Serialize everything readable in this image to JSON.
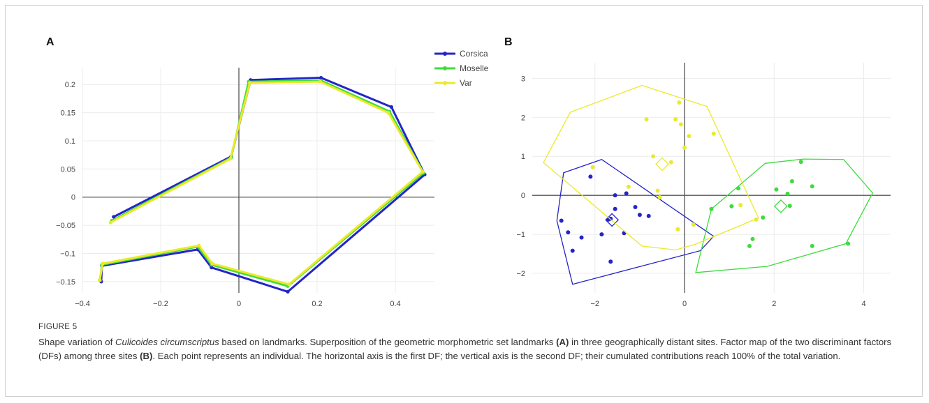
{
  "panels": {
    "a": "A",
    "b": "B"
  },
  "caption": {
    "label": "FIGURE 5",
    "text_before": "Shape variation of ",
    "species": "Culicoides circumscriptus",
    "text_1": " based on landmarks. Superposition of the geometric morphometric set landmarks ",
    "ref_a": "(A)",
    "text_2": " in three geographically distant sites. Factor map of the two discriminant factors (DFs) among three sites ",
    "ref_b": "(B)",
    "text_3": ". Each point represents an individual. The horizontal axis is the first DF; the vertical axis is the second DF; their cumulated contributions reach 100% of the total variation."
  },
  "colors": {
    "Corsica": "#2424c8",
    "Moselle": "#3ddc3d",
    "Var": "#eaea2a"
  },
  "chart_data": [
    {
      "type": "line",
      "panel": "A",
      "xlim": [
        -0.4,
        0.5
      ],
      "ylim": [
        -0.17,
        0.23
      ],
      "xticks": [
        -0.4,
        -0.2,
        0,
        0.2,
        0.4
      ],
      "xtick_labels": [
        "−0.4",
        "−0.2",
        "0",
        "0.2",
        "0.4"
      ],
      "yticks": [
        -0.15,
        -0.1,
        -0.05,
        0,
        0.05,
        0.1,
        0.15,
        0.2
      ],
      "ytick_labels": [
        "−0.15",
        "−0.1",
        "−0.05",
        "0",
        "0.05",
        "0.1",
        "0.15",
        "0.2"
      ],
      "grid": true,
      "legend_position": "top-right",
      "series": [
        {
          "name": "Corsica",
          "color": "#2424c8",
          "points": [
            [
              -0.32,
              -0.035
            ],
            [
              -0.02,
              0.072
            ],
            [
              0.03,
              0.208
            ],
            [
              0.21,
              0.212
            ],
            [
              0.39,
              0.16
            ],
            [
              0.475,
              0.04
            ],
            [
              0.125,
              -0.168
            ],
            [
              -0.07,
              -0.125
            ],
            [
              -0.105,
              -0.093
            ],
            [
              -0.35,
              -0.122
            ],
            [
              -0.352,
              -0.15
            ]
          ]
        },
        {
          "name": "Moselle",
          "color": "#3ddc3d",
          "points": [
            [
              -0.325,
              -0.042
            ],
            [
              -0.02,
              0.07
            ],
            [
              0.025,
              0.205
            ],
            [
              0.21,
              0.207
            ],
            [
              0.385,
              0.152
            ],
            [
              0.472,
              0.043
            ],
            [
              0.125,
              -0.158
            ],
            [
              -0.07,
              -0.12
            ],
            [
              -0.105,
              -0.088
            ],
            [
              -0.35,
              -0.12
            ],
            [
              -0.355,
              -0.148
            ]
          ]
        },
        {
          "name": "Var",
          "color": "#eaea2a",
          "points": [
            [
              -0.328,
              -0.045
            ],
            [
              -0.022,
              0.068
            ],
            [
              0.028,
              0.203
            ],
            [
              0.208,
              0.205
            ],
            [
              0.382,
              0.15
            ],
            [
              0.47,
              0.045
            ],
            [
              0.128,
              -0.155
            ],
            [
              -0.068,
              -0.118
            ],
            [
              -0.102,
              -0.086
            ],
            [
              -0.348,
              -0.118
            ],
            [
              -0.356,
              -0.147
            ]
          ]
        }
      ]
    },
    {
      "type": "scatter",
      "panel": "B",
      "xlim": [
        -3.4,
        4.6
      ],
      "ylim": [
        -2.5,
        3.4
      ],
      "xticks": [
        -2,
        0,
        2,
        4
      ],
      "xtick_labels": [
        "−2",
        "0",
        "2",
        "4"
      ],
      "yticks": [
        -2,
        -1,
        0,
        1,
        2,
        3
      ],
      "ytick_labels": [
        "−2",
        "−1",
        "0",
        "1",
        "2",
        "3"
      ],
      "grid": true,
      "series": [
        {
          "name": "Corsica",
          "color": "#2424c8",
          "points": [
            [
              -2.75,
              -0.65
            ],
            [
              -2.6,
              -0.95
            ],
            [
              -2.5,
              -1.42
            ],
            [
              -2.3,
              -1.08
            ],
            [
              -2.1,
              0.48
            ],
            [
              -1.85,
              -1.0
            ],
            [
              -1.7,
              -0.62
            ],
            [
              -1.65,
              -1.7
            ],
            [
              -1.55,
              -0.35
            ],
            [
              -1.55,
              0.0
            ],
            [
              -1.3,
              0.05
            ],
            [
              -1.35,
              -0.97
            ],
            [
              -1.1,
              -0.3
            ],
            [
              -1.0,
              -0.5
            ],
            [
              -0.8,
              -0.53
            ],
            [
              -1.65,
              -0.6
            ]
          ],
          "hull": [
            [
              -2.5,
              -2.28
            ],
            [
              0.35,
              -1.42
            ],
            [
              0.65,
              -1.05
            ],
            [
              -1.85,
              0.92
            ],
            [
              -2.7,
              0.58
            ],
            [
              -2.85,
              -0.65
            ]
          ],
          "centroid": [
            -1.62,
            -0.63
          ]
        },
        {
          "name": "Moselle",
          "color": "#3ddc3d",
          "points": [
            [
              0.6,
              -0.35
            ],
            [
              1.05,
              -0.28
            ],
            [
              1.2,
              0.18
            ],
            [
              1.45,
              -1.3
            ],
            [
              1.52,
              -1.12
            ],
            [
              1.75,
              -0.57
            ],
            [
              2.05,
              0.15
            ],
            [
              2.3,
              0.04
            ],
            [
              2.35,
              -0.27
            ],
            [
              2.4,
              0.36
            ],
            [
              2.6,
              0.86
            ],
            [
              2.85,
              0.23
            ],
            [
              2.85,
              -1.3
            ],
            [
              3.65,
              -1.24
            ]
          ],
          "hull": [
            [
              0.25,
              -1.98
            ],
            [
              1.85,
              -1.82
            ],
            [
              3.6,
              -1.24
            ],
            [
              4.2,
              0.06
            ],
            [
              3.55,
              0.92
            ],
            [
              2.65,
              0.93
            ],
            [
              1.8,
              0.82
            ],
            [
              0.6,
              -0.35
            ]
          ],
          "centroid": [
            2.15,
            -0.28
          ]
        },
        {
          "name": "Var",
          "color": "#eaea2a",
          "points": [
            [
              -2.05,
              0.72
            ],
            [
              -1.25,
              0.22
            ],
            [
              -0.85,
              1.95
            ],
            [
              -0.7,
              1.0
            ],
            [
              -0.6,
              0.12
            ],
            [
              -0.55,
              -0.05
            ],
            [
              -0.3,
              0.85
            ],
            [
              -0.2,
              1.95
            ],
            [
              -0.15,
              -0.87
            ],
            [
              -0.12,
              2.38
            ],
            [
              -0.08,
              1.82
            ],
            [
              0.0,
              1.22
            ],
            [
              0.1,
              1.52
            ],
            [
              0.2,
              -0.75
            ],
            [
              0.65,
              1.58
            ],
            [
              1.25,
              -0.25
            ],
            [
              1.6,
              -0.62
            ]
          ],
          "hull": [
            [
              -3.15,
              0.84
            ],
            [
              -2.55,
              2.13
            ],
            [
              -0.95,
              2.82
            ],
            [
              0.5,
              2.28
            ],
            [
              1.65,
              -0.58
            ],
            [
              0.25,
              -1.25
            ],
            [
              -0.2,
              -1.4
            ],
            [
              -0.95,
              -1.3
            ],
            [
              -3.15,
              0.84
            ]
          ],
          "centroid": [
            -0.5,
            0.8
          ]
        }
      ]
    }
  ]
}
